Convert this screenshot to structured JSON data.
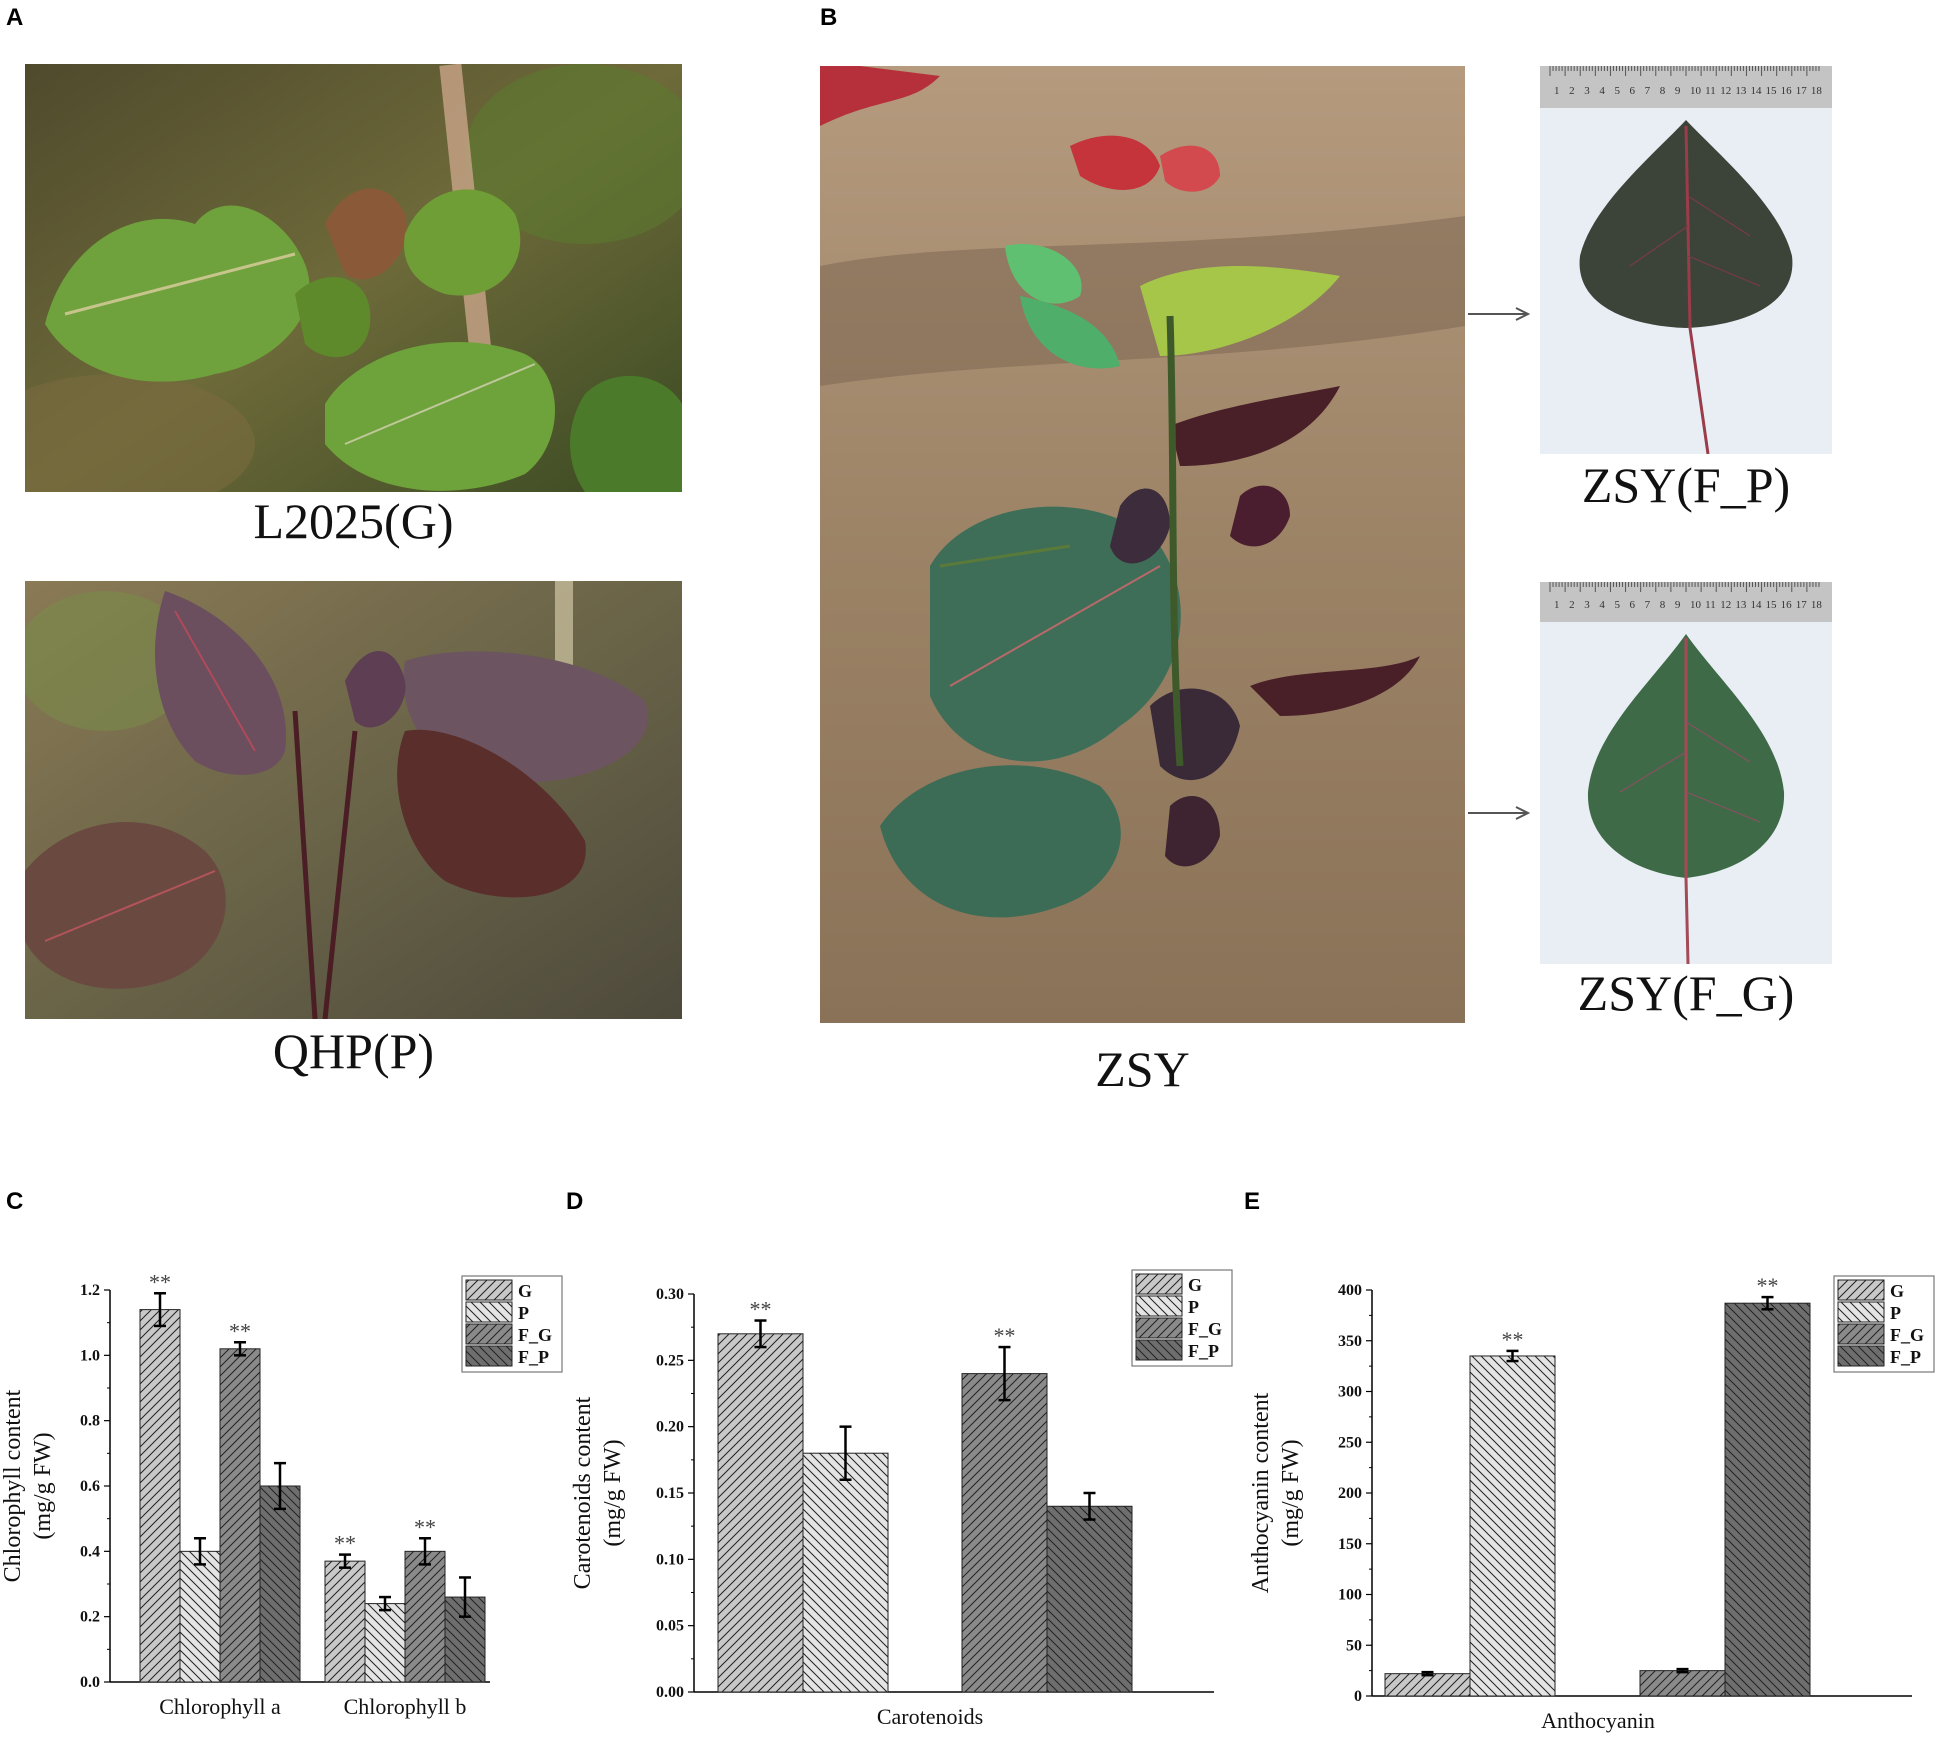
{
  "panels": {
    "a": "A",
    "b": "B",
    "c": "C",
    "d": "D",
    "e": "E"
  },
  "captions": {
    "l2025": "L2025(G)",
    "qhp": "QHP(P)",
    "zsy": "ZSY",
    "zsy_fp": "ZSY(F_P)",
    "zsy_fg": "ZSY(F_G)"
  },
  "ruler_ticks": [
    "1",
    "2",
    "3",
    "4",
    "5",
    "6",
    "7",
    "8",
    "9",
    "10",
    "11",
    "12",
    "13",
    "14",
    "15",
    "16",
    "17",
    "18"
  ],
  "colors": {
    "G": "#c8c8c8",
    "P": "#e4e4e4",
    "F_G": "#8a8a8a",
    "F_P": "#6e6e6e"
  },
  "chart_data": [
    {
      "type": "bar",
      "ylabel": [
        "Chlorophyll content",
        "(mg/g FW)"
      ],
      "categories": [
        "Chlorophyll a",
        "Chlorophyll b"
      ],
      "ylim": [
        0,
        1.2
      ],
      "yticks": [
        "0.0",
        "0.2",
        "0.4",
        "0.6",
        "0.8",
        "1.0",
        "1.2"
      ],
      "legend": [
        "G",
        "P",
        "F_G",
        "F_P"
      ],
      "series": [
        {
          "name": "G",
          "values": [
            1.14,
            0.37
          ],
          "errors": [
            0.05,
            0.02
          ],
          "sig": [
            "**",
            "**"
          ]
        },
        {
          "name": "P",
          "values": [
            0.4,
            0.24
          ],
          "errors": [
            0.04,
            0.02
          ],
          "sig": [
            "",
            ""
          ]
        },
        {
          "name": "F_G",
          "values": [
            1.02,
            0.4
          ],
          "errors": [
            0.02,
            0.04
          ],
          "sig": [
            "**",
            "**"
          ]
        },
        {
          "name": "F_P",
          "values": [
            0.6,
            0.26
          ],
          "errors": [
            0.07,
            0.06
          ],
          "sig": [
            "",
            ""
          ]
        }
      ]
    },
    {
      "type": "bar",
      "ylabel": [
        "Carotenoids content",
        "(mg/g FW)"
      ],
      "categories": [
        "Carotenoids"
      ],
      "ylim": [
        0,
        0.3
      ],
      "yticks": [
        "0.00",
        "0.05",
        "0.10",
        "0.15",
        "0.20",
        "0.25",
        "0.30"
      ],
      "legend": [
        "G",
        "P",
        "F_G",
        "F_P"
      ],
      "series": [
        {
          "name": "G",
          "values": [
            0.27
          ],
          "errors": [
            0.01
          ],
          "sig": [
            "**"
          ]
        },
        {
          "name": "P",
          "values": [
            0.18
          ],
          "errors": [
            0.02
          ],
          "sig": [
            ""
          ]
        },
        {
          "name": "F_G",
          "values": [
            0.24
          ],
          "errors": [
            0.02
          ],
          "sig": [
            "**"
          ]
        },
        {
          "name": "F_P",
          "values": [
            0.14
          ],
          "errors": [
            0.01
          ],
          "sig": [
            ""
          ]
        }
      ]
    },
    {
      "type": "bar",
      "ylabel": [
        "Anthocyanin content",
        "(mg/g FW)"
      ],
      "categories": [
        "Anthocyanin"
      ],
      "ylim": [
        0,
        400
      ],
      "yticks": [
        "0",
        "50",
        "100",
        "150",
        "200",
        "250",
        "300",
        "350",
        "400"
      ],
      "legend": [
        "G",
        "P",
        "F_G",
        "F_P"
      ],
      "series": [
        {
          "name": "G",
          "values": [
            22
          ],
          "errors": [
            1.5
          ],
          "sig": [
            ""
          ]
        },
        {
          "name": "P",
          "values": [
            335
          ],
          "errors": [
            5
          ],
          "sig": [
            "**"
          ]
        },
        {
          "name": "F_G",
          "values": [
            25
          ],
          "errors": [
            1.5
          ],
          "sig": [
            ""
          ]
        },
        {
          "name": "F_P",
          "values": [
            387
          ],
          "errors": [
            6
          ],
          "sig": [
            "**"
          ]
        }
      ]
    }
  ]
}
